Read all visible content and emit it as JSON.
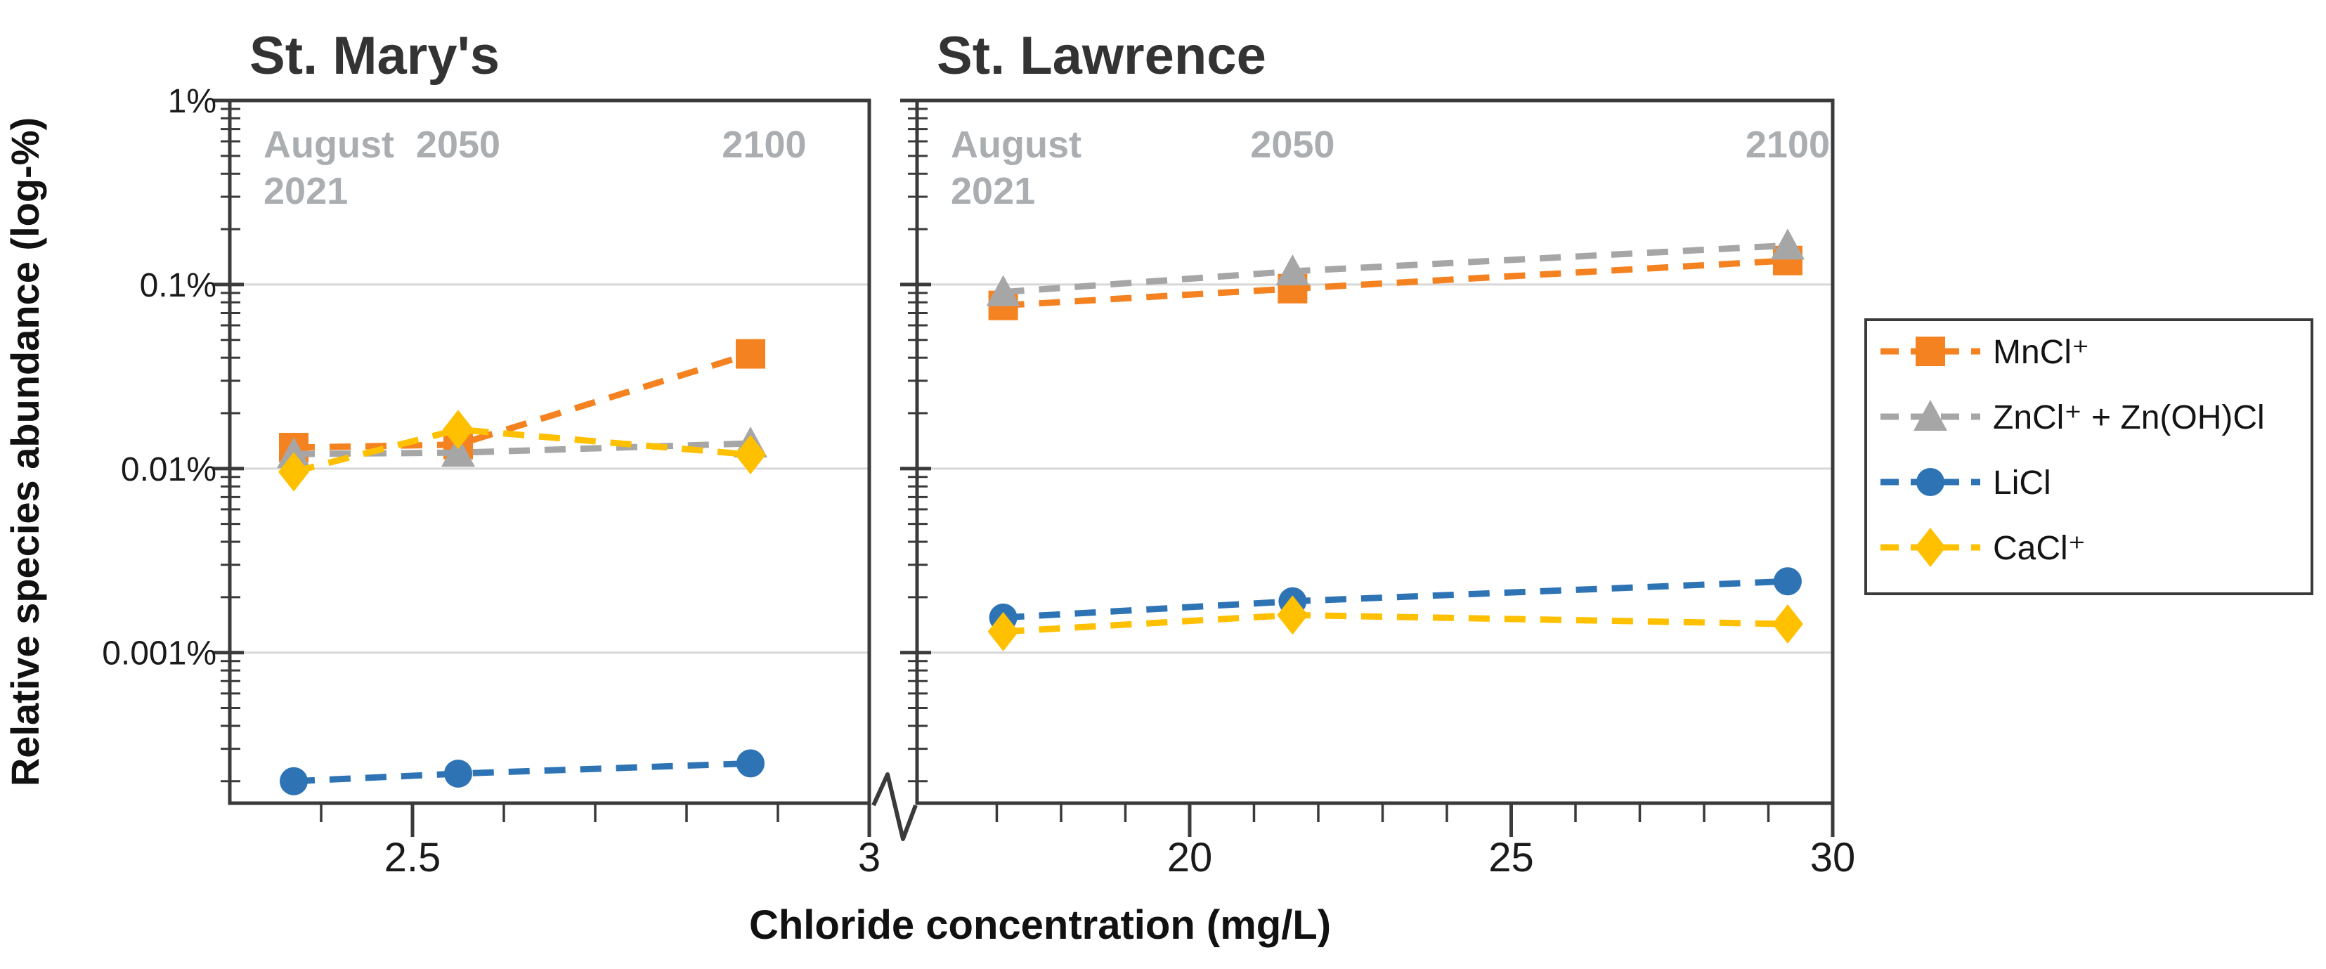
{
  "figure": {
    "background": "#ffffff",
    "frame_color": "#3a3a3a",
    "tick_color": "#3a3a3a",
    "gridline_color": "#d8d8d8",
    "title_color": "#333333",
    "tick_label_color": "#1a1a1a",
    "annotation_color": "#abaeb1",
    "legend_border_color": "#3a3a3a",
    "legend_text_color": "#141414"
  },
  "chart_data": {
    "type": "line",
    "line_style": "dashed",
    "grid": "horizontal-only",
    "y_axis": {
      "label": "Relative species abundance (log-%)",
      "scale": "log",
      "unit": "percent",
      "max": 1,
      "min": 0.000152,
      "ticks": [
        {
          "value": 1,
          "label": "1%"
        },
        {
          "value": 0.1,
          "label": "0.1%"
        },
        {
          "value": 0.01,
          "label": "0.01%"
        },
        {
          "value": 0.001,
          "label": "0.001%"
        }
      ],
      "gridlines": [
        0.1,
        0.01,
        0.001
      ]
    },
    "x_axis": {
      "label": "Chloride concentration (mg/L)",
      "broken_between_panels": true
    },
    "series": [
      {
        "name": "MnCl⁺",
        "marker": "square",
        "color": "#f58220"
      },
      {
        "name": "ZnCl⁺ + Zn(OH)Cl",
        "marker": "triangle",
        "color": "#a6a6a6"
      },
      {
        "name": "LiCl",
        "marker": "circle",
        "color": "#2e74b5"
      },
      {
        "name": "CaCl⁺",
        "marker": "diamond",
        "color": "#ffc000"
      }
    ],
    "panels": [
      {
        "title": "St. Mary's",
        "x_min": 2.3,
        "x_max": 3.0,
        "x_major_ticks": [
          2.5,
          3
        ],
        "x_tick_labels": [
          "2.5",
          "3"
        ],
        "x_minor_ticks": [
          2.4,
          2.6,
          2.7,
          2.8,
          2.9
        ],
        "x_points": [
          2.37,
          2.55,
          2.87
        ],
        "annotations": [
          {
            "lines": [
              "August",
              "2021"
            ],
            "x": 2.34,
            "align": "left"
          },
          {
            "lines": [
              "2050"
            ],
            "x": 2.55,
            "align": "center"
          },
          {
            "lines": [
              "2100"
            ],
            "x": 2.885,
            "align": "center"
          }
        ],
        "series_values": [
          {
            "name": "MnCl⁺",
            "values": [
              0.013,
              0.0135,
              0.042
            ]
          },
          {
            "name": "ZnCl⁺ + Zn(OH)Cl",
            "values": [
              0.012,
              0.0122,
              0.0137
            ]
          },
          {
            "name": "LiCl",
            "values": [
              0.0002,
              0.00022,
              0.00025
            ]
          },
          {
            "name": "CaCl⁺",
            "values": [
              0.0096,
              0.0163,
              0.0119
            ]
          }
        ]
      },
      {
        "title": "St. Lawrence",
        "x_min": 15.76,
        "x_max": 30,
        "x_major_ticks": [
          20,
          25,
          30
        ],
        "x_tick_labels": [
          "20",
          "25",
          "30"
        ],
        "x_minor_ticks": [
          17,
          18,
          19,
          21,
          22,
          23,
          24,
          26,
          27,
          28,
          29
        ],
        "x_points": [
          17.1,
          21.6,
          29.3
        ],
        "annotations": [
          {
            "lines": [
              "August",
              "2021"
            ],
            "x": 16.5,
            "align": "left"
          },
          {
            "lines": [
              "2050"
            ],
            "x": 21.6,
            "align": "center"
          },
          {
            "lines": [
              "2100"
            ],
            "x": 29.3,
            "align": "center"
          }
        ],
        "series_values": [
          {
            "name": "MnCl⁺",
            "values": [
              0.077,
              0.095,
              0.135
            ]
          },
          {
            "name": "ZnCl⁺ + Zn(OH)Cl",
            "values": [
              0.091,
              0.118,
              0.163
            ]
          },
          {
            "name": "LiCl",
            "values": [
              0.00155,
              0.0019,
              0.00244
            ]
          },
          {
            "name": "CaCl⁺",
            "values": [
              0.0013,
              0.0016,
              0.00143
            ]
          }
        ]
      }
    ],
    "legend": {
      "position": "right",
      "entries": [
        "MnCl⁺",
        "ZnCl⁺ + Zn(OH)Cl",
        "LiCl",
        "CaCl⁺"
      ]
    }
  }
}
